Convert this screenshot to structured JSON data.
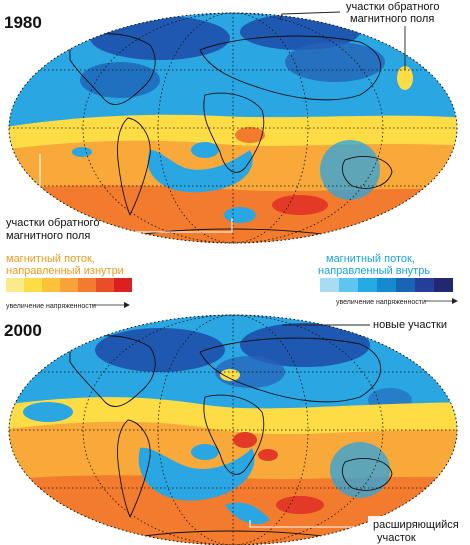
{
  "maps": [
    {
      "year": "1980",
      "annotations": {
        "reverse_patches_top": [
          "участки обратного",
          "магнитного поля"
        ],
        "reverse_patches_left": [
          "участки обратного",
          "магнитного поля"
        ]
      }
    },
    {
      "year": "2000",
      "annotations": {
        "new_patches": [
          "новые участки"
        ],
        "expanding_patch": [
          "расширяющийся",
          "участок"
        ]
      }
    }
  ],
  "legend": {
    "outward": {
      "title": [
        "магнитный поток,",
        "направленный изнутри"
      ],
      "scale_label": "увеличение напряженности",
      "colors": [
        "#fbe98a",
        "#fddc46",
        "#fcc23a",
        "#f9a23a",
        "#f37b2e",
        "#ea4d29",
        "#db2021"
      ]
    },
    "inward": {
      "title": [
        "магнитный поток,",
        "направленный внутрь"
      ],
      "scale_label": "увеличение напряженности",
      "colors": [
        "#a9dcf3",
        "#5ec5ef",
        "#27a9e3",
        "#1789d1",
        "#1a64b5",
        "#233f99",
        "#22286f"
      ]
    }
  },
  "colors": {
    "ocean_base": "#2aa6e2",
    "deep_blue": "#1d4aa8",
    "yellow": "#fddc46",
    "orange": "#f49a2c",
    "red": "#e23a26"
  }
}
